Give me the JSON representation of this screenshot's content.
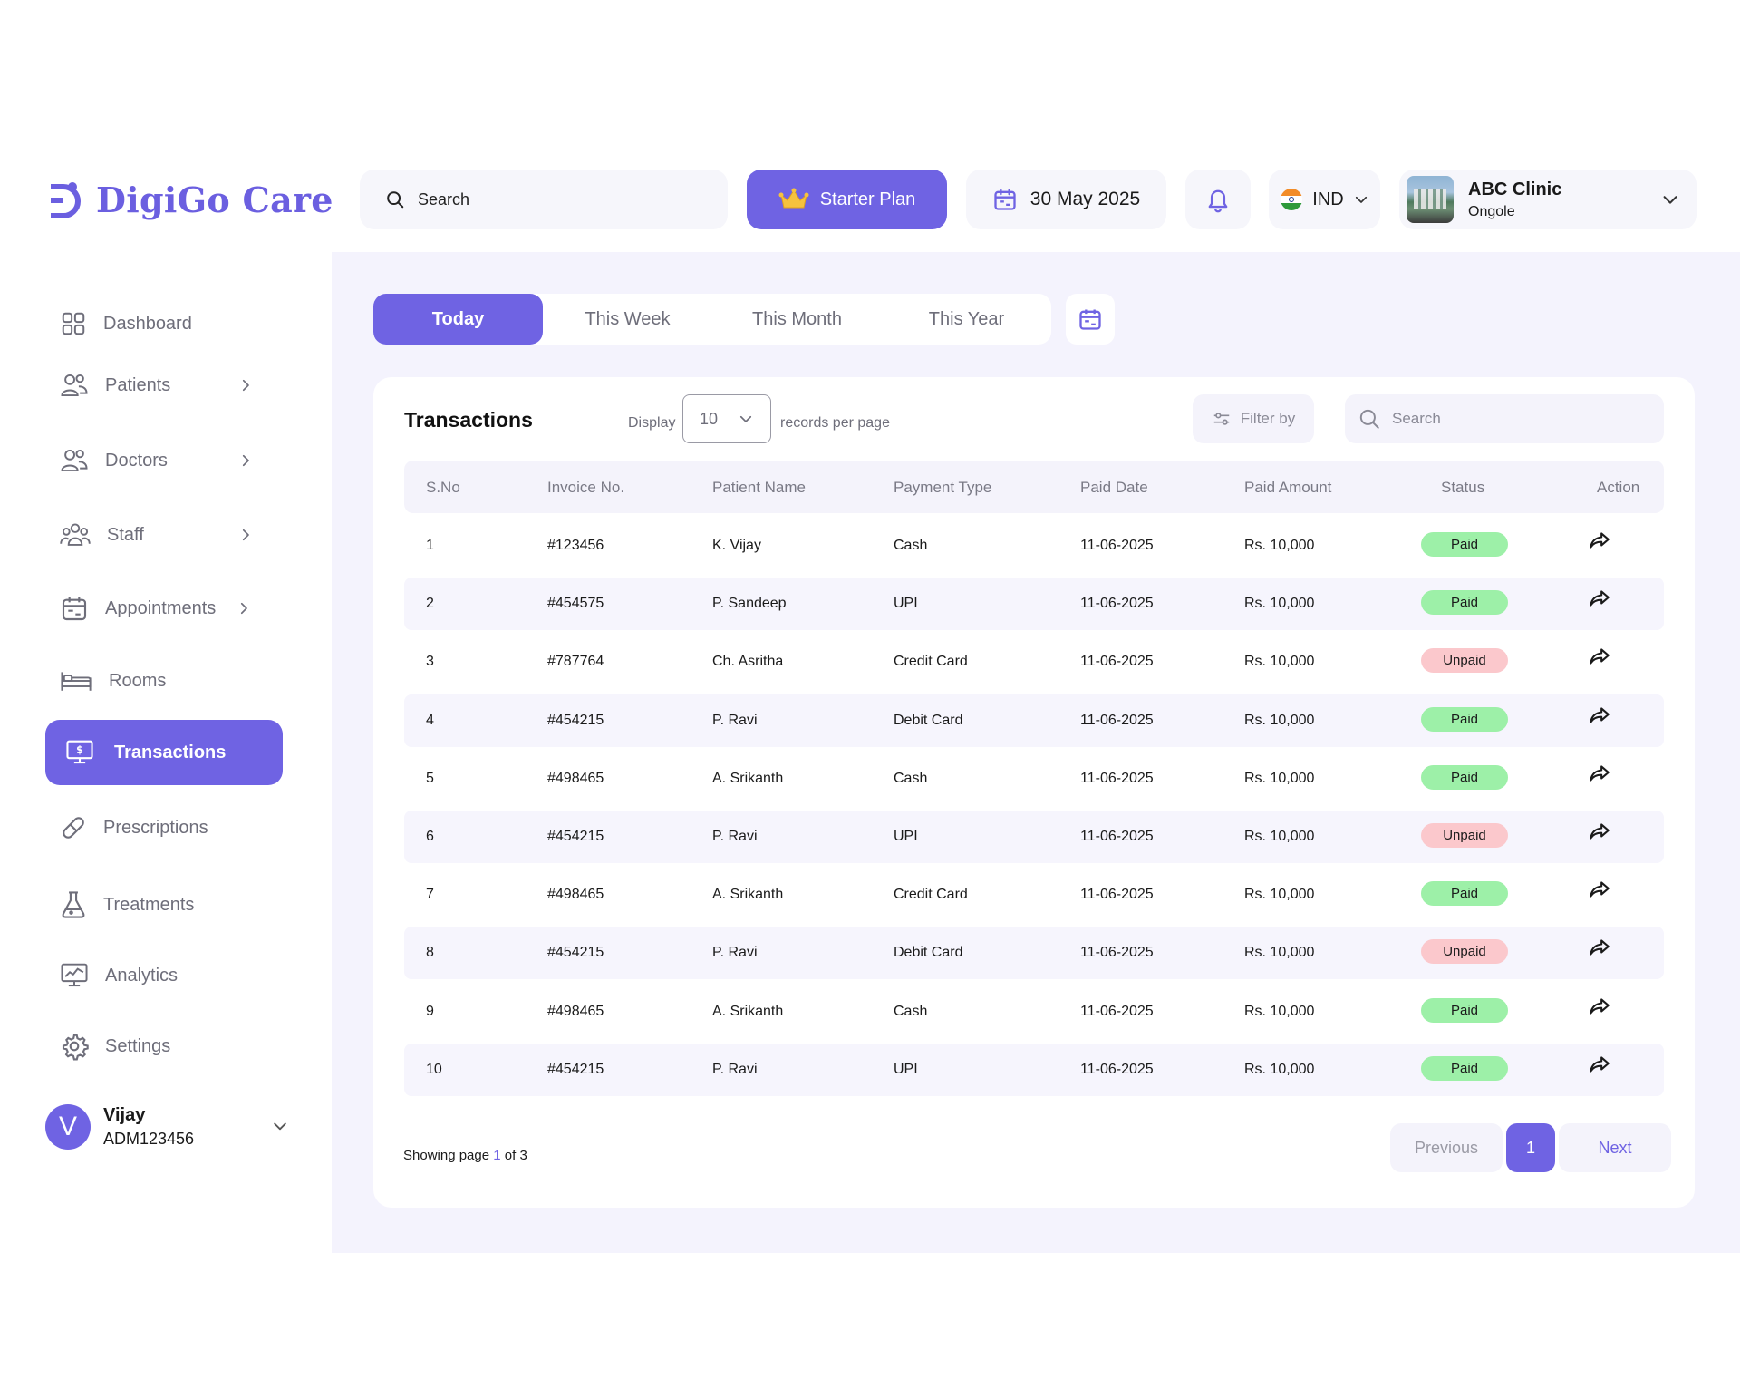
{
  "brand": {
    "name": "DigiGo Care",
    "color": "#6b5fe0"
  },
  "header": {
    "search_placeholder": "Search",
    "plan_label": "Starter Plan",
    "date": "30 May 2025",
    "language": "IND",
    "clinic": {
      "name": "ABC Clinic",
      "location": "Ongole"
    }
  },
  "sidebar": {
    "items": [
      {
        "label": "Dashboard",
        "icon": "grid-icon"
      },
      {
        "label": "Patients",
        "icon": "users-icon"
      },
      {
        "label": "Doctors",
        "icon": "users-icon"
      },
      {
        "label": "Staff",
        "icon": "staff-icon"
      },
      {
        "label": "Appointments",
        "icon": "calendar-icon"
      },
      {
        "label": "Rooms",
        "icon": "bed-icon"
      },
      {
        "label": "Transactions",
        "icon": "billing-monitor-icon"
      },
      {
        "label": "Prescriptions",
        "icon": "pill-icon"
      },
      {
        "label": "Treatments",
        "icon": "flask-icon"
      },
      {
        "label": "Analytics",
        "icon": "analytics-monitor-icon"
      },
      {
        "label": "Settings",
        "icon": "gear-icon"
      }
    ],
    "user": {
      "initial": "V",
      "name": "Vijay",
      "id": "ADM123456"
    }
  },
  "periods": [
    "Today",
    "This Week",
    "This Month",
    "This Year"
  ],
  "transactions": {
    "title": "Transactions",
    "display_label": "Display",
    "page_size": "10",
    "records_label": "records per page",
    "filter_label": "Filter by",
    "search_placeholder": "Search",
    "columns": [
      "S.No",
      "Invoice No.",
      "Patient Name",
      "Payment Type",
      "Paid Date",
      "Paid Amount",
      "Status",
      "Action"
    ],
    "rows": [
      {
        "sno": "1",
        "invoice": "#123456",
        "patient": "K. Vijay",
        "type": "Cash",
        "date": "11-06-2025",
        "amount": "Rs. 10,000",
        "status": "Paid"
      },
      {
        "sno": "2",
        "invoice": "#454575",
        "patient": "P. Sandeep",
        "type": "UPI",
        "date": "11-06-2025",
        "amount": "Rs. 10,000",
        "status": "Paid"
      },
      {
        "sno": "3",
        "invoice": "#787764",
        "patient": "Ch. Asritha",
        "type": "Credit Card",
        "date": "11-06-2025",
        "amount": "Rs. 10,000",
        "status": "Unpaid"
      },
      {
        "sno": "4",
        "invoice": "#454215",
        "patient": "P. Ravi",
        "type": "Debit Card",
        "date": "11-06-2025",
        "amount": "Rs. 10,000",
        "status": "Paid"
      },
      {
        "sno": "5",
        "invoice": "#498465",
        "patient": "A. Srikanth",
        "type": "Cash",
        "date": "11-06-2025",
        "amount": "Rs. 10,000",
        "status": "Paid"
      },
      {
        "sno": "6",
        "invoice": "#454215",
        "patient": "P. Ravi",
        "type": "UPI",
        "date": "11-06-2025",
        "amount": "Rs. 10,000",
        "status": "Unpaid"
      },
      {
        "sno": "7",
        "invoice": "#498465",
        "patient": "A. Srikanth",
        "type": "Credit Card",
        "date": "11-06-2025",
        "amount": "Rs. 10,000",
        "status": "Paid"
      },
      {
        "sno": "8",
        "invoice": "#454215",
        "patient": "P. Ravi",
        "type": "Debit Card",
        "date": "11-06-2025",
        "amount": "Rs. 10,000",
        "status": "Unpaid"
      },
      {
        "sno": "9",
        "invoice": "#498465",
        "patient": "A. Srikanth",
        "type": "Cash",
        "date": "11-06-2025",
        "amount": "Rs. 10,000",
        "status": "Paid"
      },
      {
        "sno": "10",
        "invoice": "#454215",
        "patient": "P. Ravi",
        "type": "UPI",
        "date": "11-06-2025",
        "amount": "Rs. 10,000",
        "status": "Paid"
      }
    ],
    "pagination": {
      "prefix": "Showing page ",
      "current": "1",
      "suffix": " of 3",
      "previous": "Previous",
      "page": "1",
      "next": "Next"
    }
  },
  "colors": {
    "accent": "#6f63e3",
    "paid": "#9df0a8",
    "unpaid": "#fbc8cc",
    "main_bg": "#f4f3fd"
  }
}
